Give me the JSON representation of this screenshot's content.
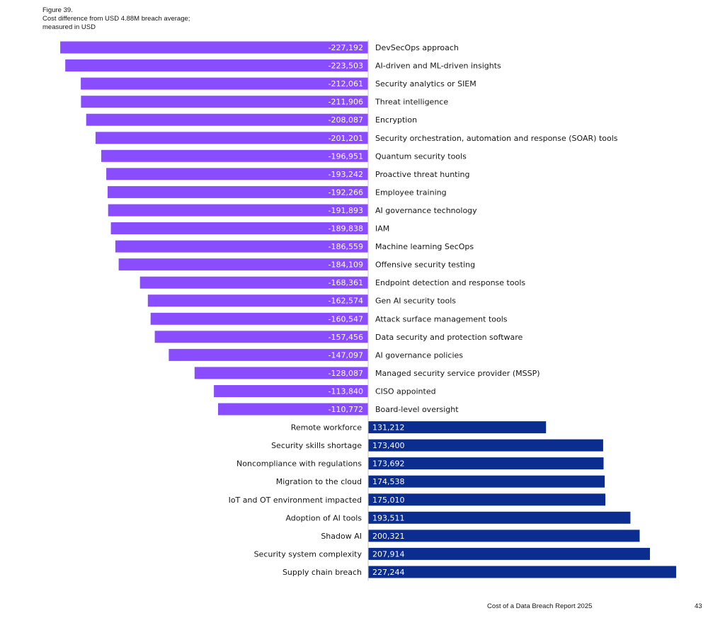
{
  "figure": {
    "label": "Figure 39.",
    "subtitle_line1": "Cost difference from USD 4.88M breach average;",
    "subtitle_line2": "measured in USD"
  },
  "footer": {
    "report_title": "Cost of a Data Breach Report 2025",
    "page_number": "43"
  },
  "colors": {
    "negative": "#8a4dfd",
    "positive": "#0b2d8f",
    "axis": "#c6c6c6"
  },
  "chart_data": {
    "type": "bar",
    "orientation": "horizontal",
    "title": "Cost difference from USD 4.88M breach average; measured in USD",
    "xlim": [
      -227244,
      227244
    ],
    "categories": [
      "DevSecOps approach",
      "AI-driven and ML-driven insights",
      "Security analytics or SIEM",
      "Threat intelligence",
      "Encryption",
      "Security orchestration, automation and response (SOAR) tools",
      "Quantum security tools",
      "Proactive threat hunting",
      "Employee training",
      "AI governance technology",
      "IAM",
      "Machine learning SecOps",
      "Offensive security testing",
      "Endpoint detection and response tools",
      "Gen AI security tools",
      "Attack surface management tools",
      "Data security and protection software",
      "AI governance policies",
      "Managed security service provider (MSSP)",
      "CISO appointed",
      "Board-level oversight",
      "Remote workforce",
      "Security skills shortage",
      "Noncompliance with regulations",
      "Migration to the cloud",
      "IoT and OT environment impacted",
      "Adoption of AI tools",
      "Shadow AI",
      "Security system complexity",
      "Supply chain breach"
    ],
    "values": [
      -227192,
      -223503,
      -212061,
      -211906,
      -208087,
      -201201,
      -196951,
      -193242,
      -192266,
      -191893,
      -189838,
      -186559,
      -184109,
      -168361,
      -162574,
      -160547,
      -157456,
      -147097,
      -128087,
      -113840,
      -110772,
      131212,
      173400,
      173692,
      174538,
      175010,
      193511,
      200321,
      207914,
      227244
    ],
    "value_labels": [
      "-227,192",
      "-223,503",
      "-212,061",
      "-211,906",
      "-208,087",
      "-201,201",
      "-196,951",
      "-193,242",
      "-192,266",
      "-191,893",
      "-189,838",
      "-186,559",
      "-184,109",
      "-168,361",
      "-162,574",
      "-160,547",
      "-157,456",
      "-147,097",
      "-128,087",
      "-113,840",
      "-110,772",
      "131,212",
      "173,400",
      "173,692",
      "174,538",
      "175,010",
      "193,511",
      "200,321",
      "207,914",
      "227,244"
    ]
  }
}
